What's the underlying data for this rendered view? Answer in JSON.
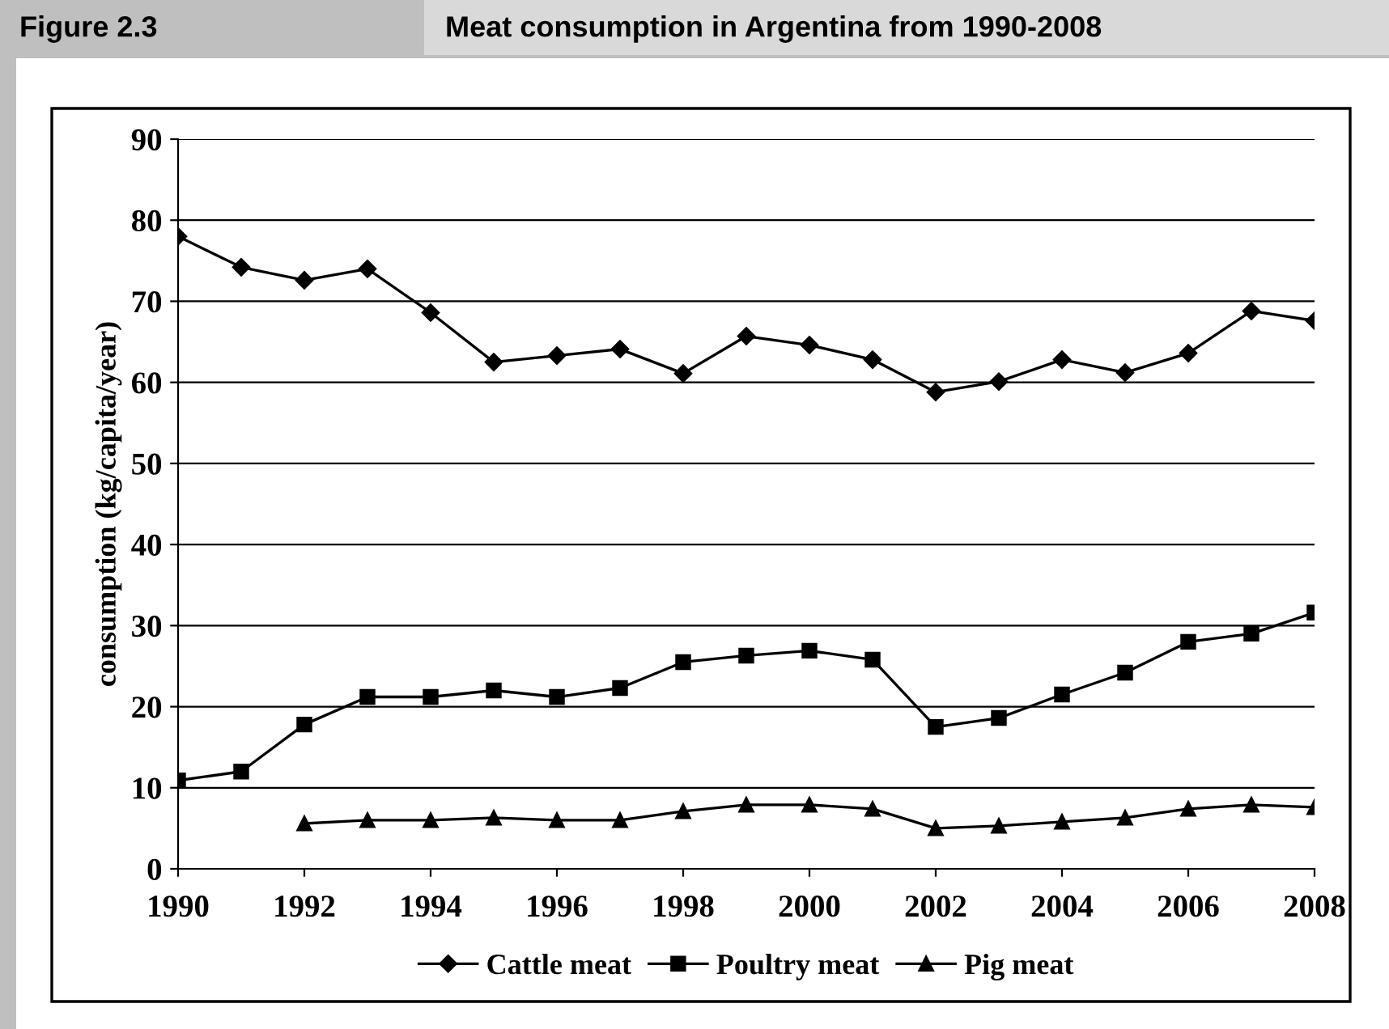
{
  "chart_data": {
    "type": "line",
    "title": "Meat consumption in Argentina from 1990-2008",
    "annotations": [
      "Figure 2.3"
    ],
    "ylabel": "consumption (kg/capita/year)",
    "x": [
      1990,
      1991,
      1992,
      1993,
      1994,
      1995,
      1996,
      1997,
      1998,
      1999,
      2000,
      2001,
      2002,
      2003,
      2004,
      2005,
      2006,
      2007,
      2008
    ],
    "series": [
      {
        "name": "Cattle meat",
        "color": "#000000",
        "marker": "diamond",
        "values": [
          78,
          74.2,
          72.6,
          74,
          68.6,
          62.5,
          63.3,
          64.1,
          61.1,
          65.7,
          64.6,
          62.8,
          58.8,
          60.1,
          62.8,
          61.2,
          63.6,
          68.8,
          67.6
        ]
      },
      {
        "name": "Poultry meat",
        "color": "#000000",
        "marker": "square",
        "values": [
          10.9,
          12,
          17.8,
          21.2,
          21.2,
          22,
          21.2,
          22.3,
          25.5,
          26.3,
          26.9,
          25.8,
          17.5,
          18.6,
          21.5,
          24.2,
          28,
          29,
          31.6
        ]
      },
      {
        "name": "Pig meat",
        "color": "#000000",
        "marker": "triangle",
        "values": [
          null,
          null,
          5.6,
          6,
          6,
          6.3,
          6,
          6,
          7.1,
          7.9,
          7.9,
          7.4,
          5,
          5.3,
          5.8,
          6.3,
          7.4,
          7.9,
          7.6
        ]
      }
    ],
    "xlim": [
      1990,
      2008
    ],
    "xticks": [
      1990,
      1992,
      1994,
      1996,
      1998,
      2000,
      2002,
      2004,
      2006,
      2008
    ],
    "ylim": [
      0,
      90
    ],
    "yticks": [
      0,
      10,
      20,
      30,
      40,
      50,
      60,
      70,
      80,
      90
    ],
    "grid": "y",
    "legend": "bottom",
    "line_style": "solid"
  }
}
